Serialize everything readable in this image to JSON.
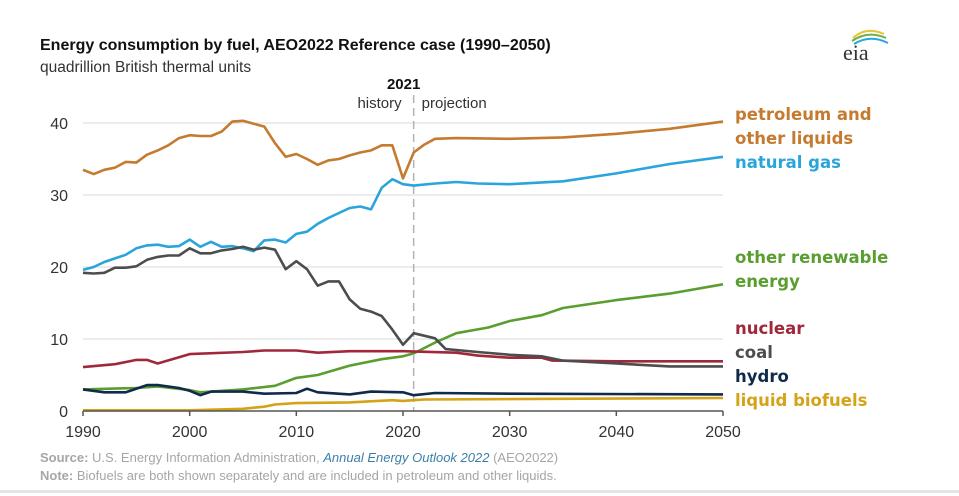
{
  "logo_text": "eia",
  "chart_data": {
    "type": "line",
    "title": "Energy consumption by fuel, AEO2022 Reference case (1990–2050)",
    "subtitle": "quadrillion British thermal units",
    "xlim": [
      1990,
      2050
    ],
    "ylim": [
      0,
      40
    ],
    "x_ticks": [
      "1990",
      "2000",
      "2010",
      "2020",
      "2030",
      "2040",
      "2050"
    ],
    "y_ticks": [
      "0",
      "10",
      "20",
      "30",
      "40"
    ],
    "grid": true,
    "legend": "right (labels at line ends)",
    "annotation": {
      "year_label": "2021",
      "divider_year": 2021,
      "left_label": "history",
      "right_label": "projection"
    },
    "series": [
      {
        "name": "petroleum and other liquids",
        "label_lines": [
          "petroleum and",
          "other liquids"
        ],
        "color": "#c47b2f",
        "points": [
          [
            1990,
            33.5
          ],
          [
            1991,
            32.9
          ],
          [
            1992,
            33.5
          ],
          [
            1993,
            33.8
          ],
          [
            1994,
            34.6
          ],
          [
            1995,
            34.5
          ],
          [
            1996,
            35.6
          ],
          [
            1997,
            36.2
          ],
          [
            1998,
            36.9
          ],
          [
            1999,
            37.9
          ],
          [
            2000,
            38.3
          ],
          [
            2001,
            38.2
          ],
          [
            2002,
            38.2
          ],
          [
            2003,
            38.8
          ],
          [
            2004,
            40.2
          ],
          [
            2005,
            40.3
          ],
          [
            2006,
            39.9
          ],
          [
            2007,
            39.5
          ],
          [
            2008,
            37.2
          ],
          [
            2009,
            35.3
          ],
          [
            2010,
            35.7
          ],
          [
            2011,
            35.0
          ],
          [
            2012,
            34.2
          ],
          [
            2013,
            34.8
          ],
          [
            2014,
            35.0
          ],
          [
            2015,
            35.5
          ],
          [
            2016,
            35.9
          ],
          [
            2017,
            36.2
          ],
          [
            2018,
            36.9
          ],
          [
            2019,
            36.9
          ],
          [
            2020,
            32.3
          ],
          [
            2021,
            35.9
          ],
          [
            2022,
            37.0
          ],
          [
            2023,
            37.8
          ],
          [
            2025,
            37.9
          ],
          [
            2030,
            37.8
          ],
          [
            2035,
            38.0
          ],
          [
            2040,
            38.5
          ],
          [
            2045,
            39.2
          ],
          [
            2050,
            40.2
          ]
        ]
      },
      {
        "name": "natural gas",
        "label_lines": [
          "natural gas"
        ],
        "color": "#2aa5dc",
        "points": [
          [
            1990,
            19.6
          ],
          [
            1991,
            20.0
          ],
          [
            1992,
            20.7
          ],
          [
            1993,
            21.2
          ],
          [
            1994,
            21.7
          ],
          [
            1995,
            22.6
          ],
          [
            1996,
            23.0
          ],
          [
            1997,
            23.1
          ],
          [
            1998,
            22.8
          ],
          [
            1999,
            22.9
          ],
          [
            2000,
            23.8
          ],
          [
            2001,
            22.8
          ],
          [
            2002,
            23.5
          ],
          [
            2003,
            22.8
          ],
          [
            2004,
            22.9
          ],
          [
            2005,
            22.6
          ],
          [
            2006,
            22.2
          ],
          [
            2007,
            23.7
          ],
          [
            2008,
            23.8
          ],
          [
            2009,
            23.4
          ],
          [
            2010,
            24.6
          ],
          [
            2011,
            24.9
          ],
          [
            2012,
            26.0
          ],
          [
            2013,
            26.8
          ],
          [
            2014,
            27.5
          ],
          [
            2015,
            28.2
          ],
          [
            2016,
            28.4
          ],
          [
            2017,
            28.0
          ],
          [
            2018,
            31.0
          ],
          [
            2019,
            32.2
          ],
          [
            2020,
            31.5
          ],
          [
            2021,
            31.3
          ],
          [
            2023,
            31.6
          ],
          [
            2025,
            31.8
          ],
          [
            2027,
            31.6
          ],
          [
            2030,
            31.5
          ],
          [
            2035,
            31.9
          ],
          [
            2040,
            33.0
          ],
          [
            2045,
            34.3
          ],
          [
            2050,
            35.3
          ]
        ]
      },
      {
        "name": "other renewable energy",
        "label_lines": [
          "other renewable",
          "energy"
        ],
        "color": "#5b9e30",
        "points": [
          [
            1990,
            3.0
          ],
          [
            1995,
            3.2
          ],
          [
            1997,
            3.4
          ],
          [
            2000,
            2.9
          ],
          [
            2001,
            2.6
          ],
          [
            2005,
            3.0
          ],
          [
            2008,
            3.5
          ],
          [
            2010,
            4.6
          ],
          [
            2012,
            5.0
          ],
          [
            2015,
            6.3
          ],
          [
            2018,
            7.2
          ],
          [
            2020,
            7.6
          ],
          [
            2021,
            8.0
          ],
          [
            2023,
            9.5
          ],
          [
            2025,
            10.8
          ],
          [
            2028,
            11.6
          ],
          [
            2030,
            12.5
          ],
          [
            2033,
            13.3
          ],
          [
            2035,
            14.3
          ],
          [
            2040,
            15.4
          ],
          [
            2045,
            16.3
          ],
          [
            2050,
            17.6
          ]
        ]
      },
      {
        "name": "nuclear",
        "label_lines": [
          "nuclear"
        ],
        "color": "#a1283b",
        "points": [
          [
            1990,
            6.1
          ],
          [
            1993,
            6.5
          ],
          [
            1995,
            7.1
          ],
          [
            1996,
            7.1
          ],
          [
            1997,
            6.6
          ],
          [
            2000,
            7.9
          ],
          [
            2005,
            8.2
          ],
          [
            2007,
            8.4
          ],
          [
            2010,
            8.4
          ],
          [
            2012,
            8.1
          ],
          [
            2015,
            8.3
          ],
          [
            2020,
            8.3
          ],
          [
            2025,
            8.1
          ],
          [
            2027,
            7.7
          ],
          [
            2030,
            7.4
          ],
          [
            2033,
            7.4
          ],
          [
            2034,
            7.0
          ],
          [
            2040,
            6.9
          ],
          [
            2050,
            6.9
          ]
        ]
      },
      {
        "name": "coal",
        "label_lines": [
          "coal"
        ],
        "color": "#4d4d4d",
        "points": [
          [
            1990,
            19.2
          ],
          [
            1991,
            19.1
          ],
          [
            1992,
            19.2
          ],
          [
            1993,
            19.9
          ],
          [
            1994,
            19.9
          ],
          [
            1995,
            20.1
          ],
          [
            1996,
            21.0
          ],
          [
            1997,
            21.4
          ],
          [
            1998,
            21.6
          ],
          [
            1999,
            21.6
          ],
          [
            2000,
            22.6
          ],
          [
            2001,
            21.9
          ],
          [
            2002,
            21.9
          ],
          [
            2003,
            22.3
          ],
          [
            2004,
            22.5
          ],
          [
            2005,
            22.8
          ],
          [
            2006,
            22.4
          ],
          [
            2007,
            22.7
          ],
          [
            2008,
            22.4
          ],
          [
            2009,
            19.7
          ],
          [
            2010,
            20.8
          ],
          [
            2011,
            19.7
          ],
          [
            2012,
            17.4
          ],
          [
            2013,
            18.0
          ],
          [
            2014,
            18.0
          ],
          [
            2015,
            15.5
          ],
          [
            2016,
            14.2
          ],
          [
            2017,
            13.8
          ],
          [
            2018,
            13.2
          ],
          [
            2019,
            11.3
          ],
          [
            2020,
            9.2
          ],
          [
            2021,
            10.8
          ],
          [
            2023,
            10.1
          ],
          [
            2024,
            8.6
          ],
          [
            2027,
            8.2
          ],
          [
            2030,
            7.8
          ],
          [
            2033,
            7.6
          ],
          [
            2035,
            7.0
          ],
          [
            2040,
            6.6
          ],
          [
            2045,
            6.2
          ],
          [
            2050,
            6.2
          ]
        ]
      },
      {
        "name": "hydro",
        "label_lines": [
          "hydro"
        ],
        "color": "#0f2a4b",
        "points": [
          [
            1990,
            3.0
          ],
          [
            1992,
            2.6
          ],
          [
            1994,
            2.6
          ],
          [
            1996,
            3.6
          ],
          [
            1997,
            3.6
          ],
          [
            1999,
            3.2
          ],
          [
            2000,
            2.8
          ],
          [
            2001,
            2.2
          ],
          [
            2002,
            2.7
          ],
          [
            2005,
            2.7
          ],
          [
            2007,
            2.4
          ],
          [
            2010,
            2.5
          ],
          [
            2011,
            3.1
          ],
          [
            2012,
            2.6
          ],
          [
            2015,
            2.3
          ],
          [
            2017,
            2.7
          ],
          [
            2020,
            2.6
          ],
          [
            2021,
            2.2
          ],
          [
            2023,
            2.5
          ],
          [
            2030,
            2.4
          ],
          [
            2050,
            2.3
          ]
        ]
      },
      {
        "name": "liquid biofuels",
        "label_lines": [
          "liquid biofuels"
        ],
        "color": "#d4a318",
        "points": [
          [
            1990,
            0.1
          ],
          [
            2000,
            0.1
          ],
          [
            2005,
            0.3
          ],
          [
            2007,
            0.6
          ],
          [
            2008,
            0.9
          ],
          [
            2010,
            1.1
          ],
          [
            2015,
            1.2
          ],
          [
            2019,
            1.5
          ],
          [
            2020,
            1.4
          ],
          [
            2021,
            1.5
          ],
          [
            2022,
            1.6
          ],
          [
            2050,
            1.8
          ]
        ]
      }
    ]
  },
  "footer": {
    "source_label": "Source:",
    "source_text": " U.S. Energy Information Administration, ",
    "source_link": "Annual Energy Outlook 2022",
    "source_suffix": " (AEO2022)",
    "note_label": "Note:",
    "note_text": " Biofuels are both shown separately and are included in petroleum and other liquids."
  }
}
